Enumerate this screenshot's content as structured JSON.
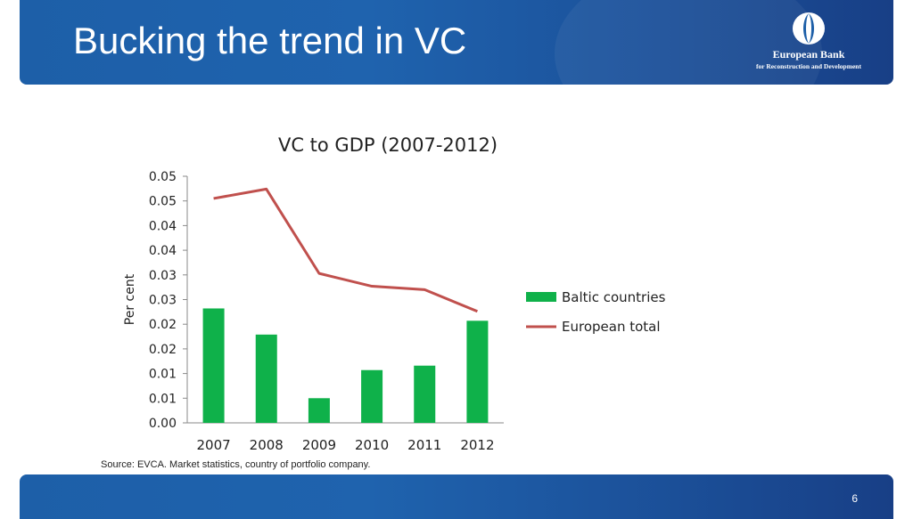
{
  "slide": {
    "title": "Bucking the trend in VC",
    "source": "Source: EVCA. Market statistics, country of portfolio company.",
    "page_number": "6"
  },
  "logo": {
    "name": "European Bank",
    "subtitle": "for Reconstruction and Development"
  },
  "colors": {
    "header_blue": "#1d5fa8",
    "bar_green": "#0fb14a",
    "line_red": "#c0504d"
  },
  "chart_data": {
    "type": "bar",
    "title": "VC to GDP (2007-2012)",
    "xlabel": "",
    "ylabel": "Per cent",
    "categories": [
      "2007",
      "2008",
      "2009",
      "2010",
      "2011",
      "2012"
    ],
    "y_ticks": [
      "0.00",
      "0.01",
      "0.01",
      "0.02",
      "0.02",
      "0.03",
      "0.03",
      "0.04",
      "0.04",
      "0.05",
      "0.05"
    ],
    "ylim": [
      0,
      0.05
    ],
    "grid": false,
    "legend_position": "right",
    "series": [
      {
        "name": "Baltic countries",
        "type": "bar",
        "values": [
          0.0232,
          0.0179,
          0.005,
          0.0107,
          0.0116,
          0.0207
        ]
      },
      {
        "name": "European total",
        "type": "line",
        "values": [
          0.0455,
          0.0474,
          0.0303,
          0.0277,
          0.027,
          0.0226
        ]
      }
    ]
  }
}
